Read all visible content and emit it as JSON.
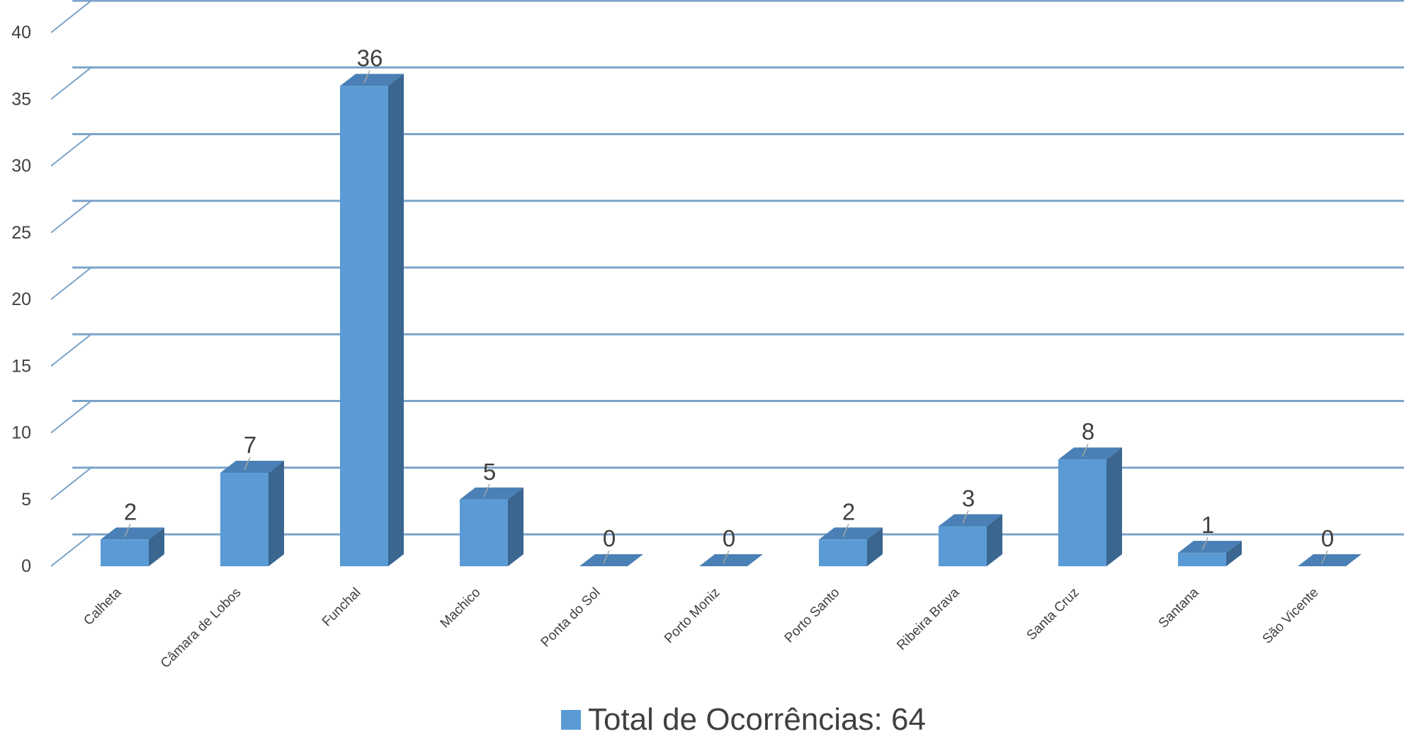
{
  "chart_data": {
    "type": "bar",
    "categories": [
      "Calheta",
      "Câmara de Lobos",
      "Funchal",
      "Machico",
      "Ponta do Sol",
      "Porto Moniz",
      "Porto Santo",
      "Ribeira Brava",
      "Santa Cruz",
      "Santana",
      "São Vicente"
    ],
    "series": [
      {
        "name": "Total de Ocorrências: 64",
        "values": [
          2,
          7,
          36,
          5,
          0,
          0,
          2,
          3,
          8,
          1,
          0
        ]
      }
    ],
    "yticks": [
      "0",
      "5",
      "10",
      "15",
      "20",
      "25",
      "30",
      "35",
      "40"
    ],
    "ylim": [
      0,
      40
    ],
    "grid": true,
    "style": "3d-column",
    "legend_position": "bottom",
    "data_labels": true,
    "colors": {
      "bar_front": "#5b9bd5",
      "bar_side": "#3a6690",
      "bar_top": "#4a80b5",
      "gridline": "#7ba3c9",
      "leader": "#a6a6a6"
    }
  }
}
